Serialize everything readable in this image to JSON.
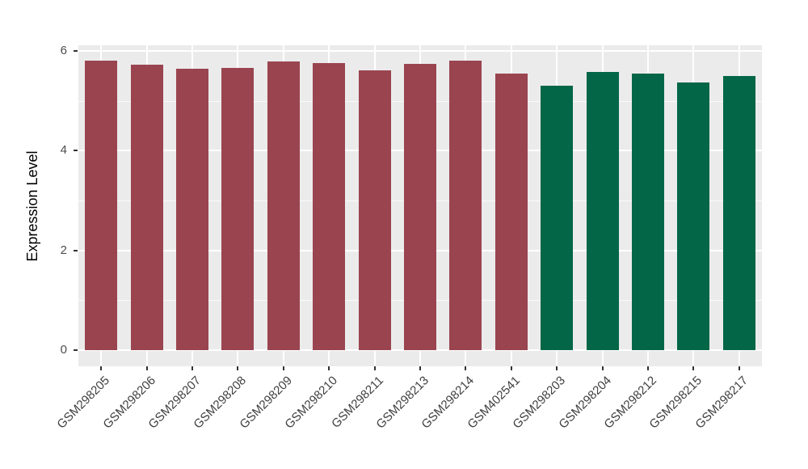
{
  "chart_data": {
    "type": "bar",
    "title": "",
    "xlabel": "",
    "ylabel": "Expression Level",
    "categories": [
      "GSM298205",
      "GSM298206",
      "GSM298207",
      "GSM298208",
      "GSM298209",
      "GSM298210",
      "GSM298211",
      "GSM298213",
      "GSM298214",
      "GSM402541",
      "GSM298203",
      "GSM298204",
      "GSM298212",
      "GSM298215",
      "GSM298217"
    ],
    "values": [
      5.81,
      5.72,
      5.64,
      5.66,
      5.79,
      5.75,
      5.61,
      5.74,
      5.81,
      5.54,
      5.3,
      5.57,
      5.55,
      5.36,
      5.49
    ],
    "bar_groups": [
      "group1",
      "group1",
      "group1",
      "group1",
      "group1",
      "group1",
      "group1",
      "group1",
      "group1",
      "group1",
      "group2",
      "group2",
      "group2",
      "group2",
      "group2"
    ],
    "group_colors": {
      "group1": "#9A4450",
      "group2": "#026647"
    },
    "yticks": [
      0,
      2,
      4,
      6
    ],
    "yticks_minor": [
      1,
      3,
      5
    ],
    "ylim": [
      0,
      6.1
    ],
    "grid": true,
    "legend": false,
    "x_tick_rotation_deg": 45,
    "panel_background": "#EBEBEB",
    "gridline_color": "#FFFFFF",
    "tick_mark_color": "#333333",
    "tick_label_color": "#4D4D4D",
    "axis_title_color": "#000000"
  }
}
